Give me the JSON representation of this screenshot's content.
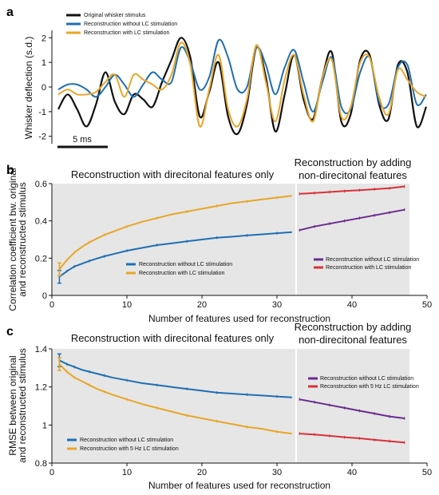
{
  "panel_labels": {
    "a": "a",
    "b": "b",
    "c": "c"
  },
  "colors": {
    "original": "#111111",
    "without_lc": "#1f6fb2",
    "with_lc": "#e8a628",
    "added_without_lc": "#6a2c8e",
    "added_with_lc": "#d8313a",
    "shade": "#e6e6e6"
  },
  "chart_data": [
    {
      "type": "line",
      "ylabel": "Whisker deflection (s.d.)",
      "yticks": [
        "-2",
        "-1",
        "0",
        "1",
        "2"
      ],
      "ylim": [
        -2.3,
        2.3
      ],
      "scalebar_label": "5 ms",
      "legend": [
        "Original whisker stimulus",
        "Reconstruction without LC stimulation",
        "Reconstruction with LC stimulation"
      ],
      "legend_position": "top-left",
      "series": [
        {
          "name": "Original whisker stimulus",
          "color": "#111111",
          "values": [
            -0.9,
            -0.3,
            -0.9,
            -1.6,
            -0.7,
            0.6,
            -0.6,
            -1.1,
            -0.3,
            -0.5,
            -0.8,
            0.2,
            1.1,
            2.0,
            1.2,
            -1.2,
            -0.2,
            1.0,
            -1.2,
            -1.9,
            -0.7,
            1.6,
            0.4,
            -1.8,
            -0.3,
            1.3,
            -0.5,
            -1.3,
            0.4,
            1.4,
            -1.4,
            -1.1,
            1.1,
            1.3,
            -0.7,
            -1.3,
            0.9,
            0.6,
            -1.6,
            -0.8
          ]
        },
        {
          "name": "Reconstruction without LC stimulation",
          "color": "#1f6fb2",
          "values": [
            -0.1,
            0.1,
            0.1,
            -0.1,
            -0.4,
            0.0,
            0.5,
            0.1,
            -0.4,
            0.1,
            0.6,
            0.3,
            0.2,
            1.6,
            1.0,
            -0.1,
            0.4,
            1.9,
            1.2,
            -0.1,
            0.0,
            1.6,
            0.9,
            -0.3,
            0.8,
            1.5,
            0.2,
            -1.0,
            0.2,
            1.2,
            -0.8,
            -0.9,
            0.6,
            1.2,
            -0.6,
            -0.7,
            0.8,
            0.9,
            -0.7,
            -0.3
          ]
        },
        {
          "name": "Reconstruction with LC stimulation",
          "color": "#e8a628",
          "values": [
            -0.3,
            -0.1,
            -0.3,
            -0.3,
            -0.2,
            0.2,
            0.5,
            -0.4,
            0.5,
            0.3,
            0.1,
            -0.1,
            0.5,
            1.8,
            0.9,
            -1.6,
            -0.1,
            1.3,
            -0.9,
            -1.6,
            -0.5,
            1.7,
            0.2,
            -1.4,
            0.3,
            1.3,
            -0.3,
            -1.4,
            0.4,
            1.1,
            -1.2,
            -0.8,
            1.0,
            1.2,
            -0.4,
            -1.1,
            0.7,
            0.3,
            -0.2,
            -0.4
          ]
        }
      ]
    },
    {
      "type": "line",
      "title_left": "Reconstruction with direcitonal features only",
      "title_right_line1": "Reconstruction by adding",
      "title_right_line2": "non-direcitonal features",
      "xlabel": "Number of features used for reconstruction",
      "ylabel_line1": "Correlation coefficient bw. original",
      "ylabel_line2": "and reconstructed stimulus",
      "xlim": [
        0,
        50
      ],
      "ylim": [
        0,
        0.6
      ],
      "xticks": [
        "0",
        "10",
        "20",
        "30",
        "40",
        "50"
      ],
      "yticks": [
        "0",
        "0.2",
        "0.4",
        "0.6"
      ],
      "series": [
        {
          "name": "Reconstruction without LC stimulation",
          "color": "#1f6fb2",
          "x": [
            1,
            2,
            3,
            4,
            5,
            6,
            7,
            8,
            10,
            12,
            14,
            16,
            18,
            20,
            22,
            24,
            26,
            28,
            30,
            32
          ],
          "values": [
            0.1,
            0.13,
            0.155,
            0.17,
            0.185,
            0.198,
            0.21,
            0.22,
            0.24,
            0.255,
            0.27,
            0.28,
            0.29,
            0.3,
            0.31,
            0.315,
            0.322,
            0.328,
            0.334,
            0.34
          ]
        },
        {
          "name": "Reconstruction with LC stimulation",
          "color": "#e8a628",
          "x": [
            1,
            2,
            3,
            4,
            5,
            6,
            7,
            8,
            10,
            12,
            14,
            16,
            18,
            20,
            22,
            24,
            26,
            28,
            30,
            32
          ],
          "values": [
            0.14,
            0.19,
            0.23,
            0.26,
            0.285,
            0.305,
            0.325,
            0.34,
            0.37,
            0.395,
            0.415,
            0.435,
            0.45,
            0.465,
            0.48,
            0.495,
            0.505,
            0.515,
            0.525,
            0.535
          ]
        },
        {
          "name": "Reconstruction without LC stimulation",
          "color": "#6a2c8e",
          "x": [
            33,
            35,
            37,
            39,
            41,
            43,
            45,
            47
          ],
          "values": [
            0.35,
            0.37,
            0.385,
            0.4,
            0.415,
            0.43,
            0.445,
            0.46
          ]
        },
        {
          "name": "Reconstruction with LC stimulation",
          "color": "#d8313a",
          "x": [
            33,
            35,
            37,
            39,
            41,
            43,
            45,
            47
          ],
          "values": [
            0.545,
            0.55,
            0.555,
            0.56,
            0.565,
            0.57,
            0.575,
            0.585
          ]
        }
      ],
      "legend_left": [
        "Reconstruction without LC stimulation",
        "Reconstruction with LC stimulation"
      ],
      "legend_right": [
        "Reconstruction without LC stimulation",
        "Reconstruction with LC stimulation"
      ]
    },
    {
      "type": "line",
      "title_left": "Reconstruction with direcitonal features only",
      "title_right_line1": "Reconstruction by adding",
      "title_right_line2": "non-direcitonal features",
      "xlabel": "Number of features used for reconstruction",
      "ylabel_line1": "RMSE between original",
      "ylabel_line2": "and reconstructed stimulus",
      "xlim": [
        0,
        50
      ],
      "ylim": [
        0.8,
        1.4
      ],
      "xticks": [
        "0",
        "10",
        "20",
        "30",
        "40",
        "50"
      ],
      "yticks": [
        "0.8",
        "1",
        "1.2",
        "1.4"
      ],
      "series": [
        {
          "name": "Reconstruction without LC stimulation",
          "color": "#1f6fb2",
          "x": [
            1,
            2,
            3,
            4,
            5,
            6,
            7,
            8,
            10,
            12,
            14,
            16,
            18,
            20,
            22,
            24,
            26,
            28,
            30,
            32
          ],
          "values": [
            1.34,
            1.32,
            1.305,
            1.29,
            1.28,
            1.27,
            1.26,
            1.25,
            1.235,
            1.22,
            1.21,
            1.2,
            1.19,
            1.18,
            1.17,
            1.165,
            1.16,
            1.155,
            1.15,
            1.145
          ]
        },
        {
          "name": "Reconstruction with 5 Hz LC stimulation",
          "color": "#e8a628",
          "x": [
            1,
            2,
            3,
            4,
            5,
            6,
            7,
            8,
            10,
            12,
            14,
            16,
            18,
            20,
            22,
            24,
            26,
            28,
            30,
            32
          ],
          "values": [
            1.32,
            1.28,
            1.25,
            1.23,
            1.21,
            1.19,
            1.175,
            1.16,
            1.135,
            1.11,
            1.09,
            1.07,
            1.05,
            1.035,
            1.02,
            1.005,
            0.99,
            0.98,
            0.965,
            0.955
          ]
        },
        {
          "name": "Reconstruction without LC stimulation",
          "color": "#6a2c8e",
          "x": [
            33,
            35,
            37,
            39,
            41,
            43,
            45,
            47
          ],
          "values": [
            1.135,
            1.12,
            1.105,
            1.09,
            1.075,
            1.06,
            1.045,
            1.035
          ]
        },
        {
          "name": "Reconstruction with 5 Hz LC stimulation",
          "color": "#d8313a",
          "x": [
            33,
            35,
            37,
            39,
            41,
            43,
            45,
            47
          ],
          "values": [
            0.955,
            0.95,
            0.943,
            0.936,
            0.93,
            0.922,
            0.915,
            0.908
          ]
        }
      ],
      "legend_left": [
        "Reconstruction without LC stimulation",
        "Reconstruction with 5 Hz LC stimulation"
      ],
      "legend_right": [
        "Reconstruction without LC stimulation",
        "Reconstruction with 5 Hz LC stimulation"
      ]
    }
  ]
}
